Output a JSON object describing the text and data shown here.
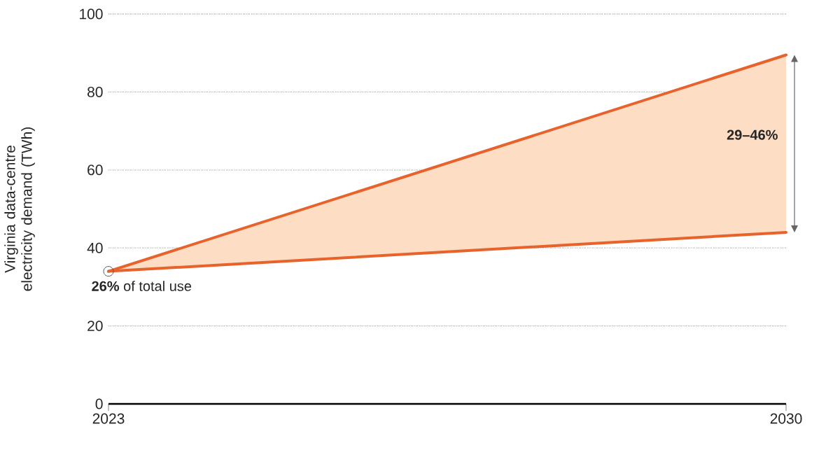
{
  "chart_data": {
    "type": "line",
    "ylabel": "Virginia data-centre electricity demand (TWh)",
    "x": [
      2023,
      2030
    ],
    "series": [
      {
        "color": "#e8622c",
        "values": [
          34,
          44
        ]
      },
      {
        "color": "#e8622c",
        "values": [
          34,
          89.5
        ],
        "lower": [
          34,
          44
        ],
        "upper": [
          34,
          89.5
        ]
      },
      {
        "type": "scatter",
        "color": "#555555",
        "x": [
          2023
        ],
        "values": [
          34
        ],
        "marker": "circle"
      }
    ],
    "annotations": [
      {
        "text": "**26%** of total use",
        "x": 2023,
        "y": 34
      },
      {
        "text": "**29–46%**",
        "x": 2030,
        "y": 69
      }
    ],
    "xlim": [
      2023,
      2030
    ],
    "ylim": [
      0,
      100
    ],
    "xticks": [
      2023,
      2030
    ],
    "yticks": [
      0,
      20,
      40,
      60,
      80,
      100
    ],
    "grid": "y",
    "line_style": "solid"
  }
}
